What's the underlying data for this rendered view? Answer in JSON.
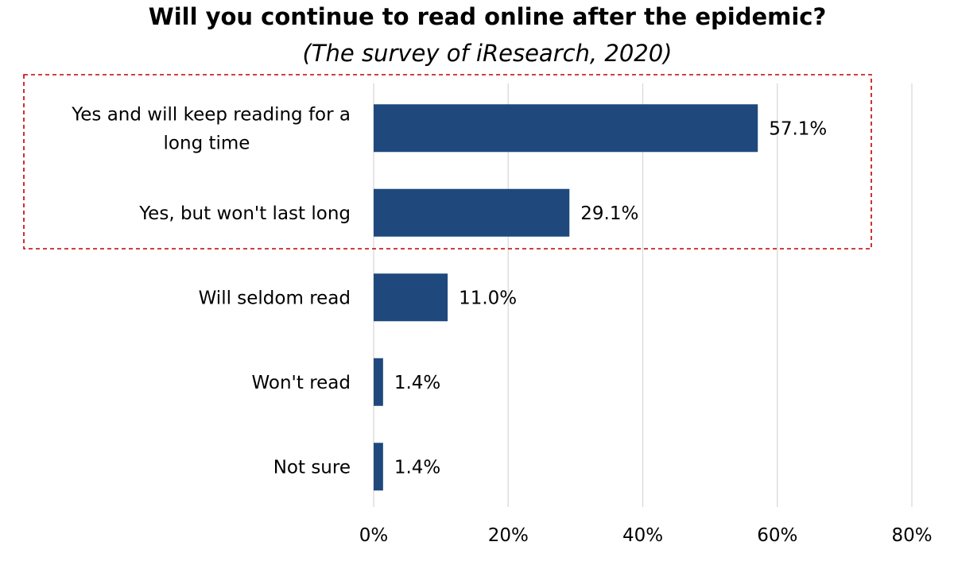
{
  "chart_data": {
    "type": "bar",
    "orientation": "horizontal",
    "title": "Will you continue to read online after the epidemic?",
    "subtitle": "(The survey of iResearch, 2020)",
    "categories": [
      "Yes and will keep reading for a long time",
      "Yes, but won't last long",
      "Will seldom read",
      "Won't read",
      "Not sure"
    ],
    "category_lines": [
      [
        "Yes and will keep reading for a",
        "long time"
      ],
      [
        "Yes, but won't last long"
      ],
      [
        "Will seldom read"
      ],
      [
        "Won't read"
      ],
      [
        "Not sure"
      ]
    ],
    "values": [
      57.1,
      29.1,
      11.0,
      1.4,
      1.4
    ],
    "data_labels": [
      "57.1%",
      "29.1%",
      "11.0%",
      "1.4%",
      "1.4%"
    ],
    "xlim": [
      0,
      80
    ],
    "xticks": [
      0,
      20,
      40,
      60,
      80
    ],
    "xtick_labels": [
      "0%",
      "20%",
      "40%",
      "60%",
      "80%"
    ],
    "grid": true,
    "bar_color": "#1F497D",
    "grid_color": "#D9D9D9",
    "highlight": {
      "categories": [
        0,
        1
      ],
      "style": "dashed-box",
      "color": "#C00000"
    }
  }
}
